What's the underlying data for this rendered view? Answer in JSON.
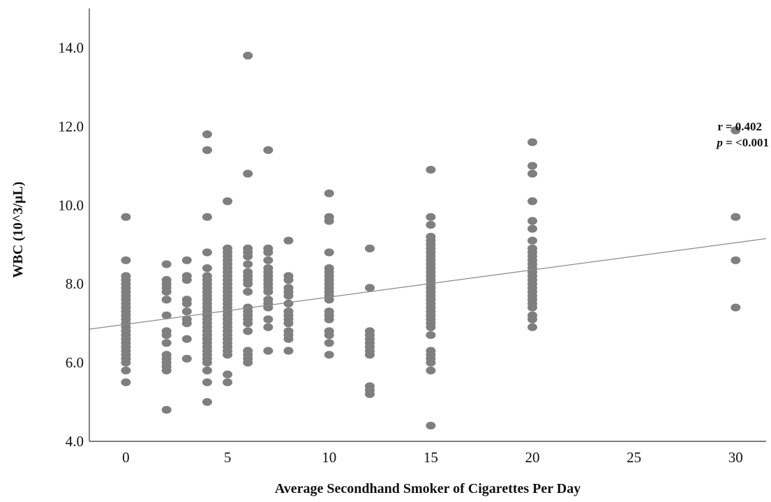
{
  "chart_data": {
    "type": "scatter",
    "xlabel": "Average Secondhand Smoker of Cigarettes Per Day",
    "ylabel": "WBC (10^3/µL)",
    "xlim": [
      -1.8,
      31.5
    ],
    "ylim": [
      4.0,
      15.0
    ],
    "x_ticks": [
      0,
      5,
      10,
      15,
      20,
      25,
      30
    ],
    "x_tick_labels": [
      "0",
      "5",
      "10",
      "15",
      "20",
      "25",
      "30"
    ],
    "y_ticks": [
      4.0,
      6.0,
      8.0,
      10.0,
      12.0,
      14.0
    ],
    "y_tick_labels": [
      "4.0",
      "6.0",
      "8.0",
      "10.0",
      "12.0",
      "14.0"
    ],
    "grid": false,
    "point_color": "#7f7f7f",
    "fit_line_color": "#8a8a8a",
    "fit_line": {
      "x": [
        -1.8,
        31.5
      ],
      "y": [
        6.85,
        9.15
      ]
    },
    "annotation": {
      "r_text": "r = 0.402",
      "p_symbol": "p",
      "p_text": " = <0.001"
    },
    "points": [
      [
        0,
        9.7
      ],
      [
        0,
        8.6
      ],
      [
        0,
        8.2
      ],
      [
        0,
        8.1
      ],
      [
        0,
        8.0
      ],
      [
        0,
        7.9
      ],
      [
        0,
        7.8
      ],
      [
        0,
        7.7
      ],
      [
        0,
        7.6
      ],
      [
        0,
        7.5
      ],
      [
        0,
        7.4
      ],
      [
        0,
        7.3
      ],
      [
        0,
        7.2
      ],
      [
        0,
        7.1
      ],
      [
        0,
        7.0
      ],
      [
        0,
        6.9
      ],
      [
        0,
        6.8
      ],
      [
        0,
        6.7
      ],
      [
        0,
        6.6
      ],
      [
        0,
        6.5
      ],
      [
        0,
        6.4
      ],
      [
        0,
        6.3
      ],
      [
        0,
        6.2
      ],
      [
        0,
        6.1
      ],
      [
        0,
        6.0
      ],
      [
        0,
        5.8
      ],
      [
        0,
        5.5
      ],
      [
        2,
        8.5
      ],
      [
        2,
        8.1
      ],
      [
        2,
        8.0
      ],
      [
        2,
        7.9
      ],
      [
        2,
        7.8
      ],
      [
        2,
        7.6
      ],
      [
        2,
        7.2
      ],
      [
        2,
        6.8
      ],
      [
        2,
        6.7
      ],
      [
        2,
        6.5
      ],
      [
        2,
        6.2
      ],
      [
        2,
        6.1
      ],
      [
        2,
        6.0
      ],
      [
        2,
        5.9
      ],
      [
        2,
        5.8
      ],
      [
        2,
        4.8
      ],
      [
        3,
        8.6
      ],
      [
        3,
        8.2
      ],
      [
        3,
        8.1
      ],
      [
        3,
        7.6
      ],
      [
        3,
        7.5
      ],
      [
        3,
        7.3
      ],
      [
        3,
        7.1
      ],
      [
        3,
        7.0
      ],
      [
        3,
        6.6
      ],
      [
        3,
        6.1
      ],
      [
        4,
        11.8
      ],
      [
        4,
        11.4
      ],
      [
        4,
        9.7
      ],
      [
        4,
        8.8
      ],
      [
        4,
        8.4
      ],
      [
        4,
        8.2
      ],
      [
        4,
        8.1
      ],
      [
        4,
        8.0
      ],
      [
        4,
        7.9
      ],
      [
        4,
        7.8
      ],
      [
        4,
        7.7
      ],
      [
        4,
        7.6
      ],
      [
        4,
        7.5
      ],
      [
        4,
        7.4
      ],
      [
        4,
        7.3
      ],
      [
        4,
        7.2
      ],
      [
        4,
        7.1
      ],
      [
        4,
        7.0
      ],
      [
        4,
        6.9
      ],
      [
        4,
        6.8
      ],
      [
        4,
        6.7
      ],
      [
        4,
        6.6
      ],
      [
        4,
        6.5
      ],
      [
        4,
        6.4
      ],
      [
        4,
        6.3
      ],
      [
        4,
        6.2
      ],
      [
        4,
        6.1
      ],
      [
        4,
        6.0
      ],
      [
        4,
        5.8
      ],
      [
        4,
        5.5
      ],
      [
        4,
        5.0
      ],
      [
        5,
        10.1
      ],
      [
        5,
        8.9
      ],
      [
        5,
        8.8
      ],
      [
        5,
        8.7
      ],
      [
        5,
        8.6
      ],
      [
        5,
        8.5
      ],
      [
        5,
        8.4
      ],
      [
        5,
        8.3
      ],
      [
        5,
        8.2
      ],
      [
        5,
        8.1
      ],
      [
        5,
        8.0
      ],
      [
        5,
        7.9
      ],
      [
        5,
        7.8
      ],
      [
        5,
        7.7
      ],
      [
        5,
        7.6
      ],
      [
        5,
        7.5
      ],
      [
        5,
        7.4
      ],
      [
        5,
        7.3
      ],
      [
        5,
        7.2
      ],
      [
        5,
        7.1
      ],
      [
        5,
        7.0
      ],
      [
        5,
        6.9
      ],
      [
        5,
        6.8
      ],
      [
        5,
        6.7
      ],
      [
        5,
        6.6
      ],
      [
        5,
        6.5
      ],
      [
        5,
        6.4
      ],
      [
        5,
        6.3
      ],
      [
        5,
        6.2
      ],
      [
        5,
        5.7
      ],
      [
        5,
        5.5
      ],
      [
        6,
        13.8
      ],
      [
        6,
        10.8
      ],
      [
        6,
        8.9
      ],
      [
        6,
        8.8
      ],
      [
        6,
        8.7
      ],
      [
        6,
        8.5
      ],
      [
        6,
        8.3
      ],
      [
        6,
        8.2
      ],
      [
        6,
        8.1
      ],
      [
        6,
        8.0
      ],
      [
        6,
        7.8
      ],
      [
        6,
        7.4
      ],
      [
        6,
        7.3
      ],
      [
        6,
        7.2
      ],
      [
        6,
        7.1
      ],
      [
        6,
        7.0
      ],
      [
        6,
        6.8
      ],
      [
        6,
        6.3
      ],
      [
        6,
        6.2
      ],
      [
        6,
        6.1
      ],
      [
        6,
        6.0
      ],
      [
        7,
        11.4
      ],
      [
        7,
        8.9
      ],
      [
        7,
        8.8
      ],
      [
        7,
        8.6
      ],
      [
        7,
        8.4
      ],
      [
        7,
        8.3
      ],
      [
        7,
        8.2
      ],
      [
        7,
        8.1
      ],
      [
        7,
        8.0
      ],
      [
        7,
        7.9
      ],
      [
        7,
        7.8
      ],
      [
        7,
        7.6
      ],
      [
        7,
        7.5
      ],
      [
        7,
        7.4
      ],
      [
        7,
        7.1
      ],
      [
        7,
        6.9
      ],
      [
        7,
        6.3
      ],
      [
        8,
        9.1
      ],
      [
        8,
        8.2
      ],
      [
        8,
        8.1
      ],
      [
        8,
        7.9
      ],
      [
        8,
        7.8
      ],
      [
        8,
        7.7
      ],
      [
        8,
        7.5
      ],
      [
        8,
        7.3
      ],
      [
        8,
        7.2
      ],
      [
        8,
        7.1
      ],
      [
        8,
        7.0
      ],
      [
        8,
        6.8
      ],
      [
        8,
        6.7
      ],
      [
        8,
        6.6
      ],
      [
        8,
        6.3
      ],
      [
        10,
        10.3
      ],
      [
        10,
        9.7
      ],
      [
        10,
        9.6
      ],
      [
        10,
        8.8
      ],
      [
        10,
        8.4
      ],
      [
        10,
        8.3
      ],
      [
        10,
        8.2
      ],
      [
        10,
        8.1
      ],
      [
        10,
        8.0
      ],
      [
        10,
        7.9
      ],
      [
        10,
        7.8
      ],
      [
        10,
        7.7
      ],
      [
        10,
        7.6
      ],
      [
        10,
        7.3
      ],
      [
        10,
        7.2
      ],
      [
        10,
        7.1
      ],
      [
        10,
        6.8
      ],
      [
        10,
        6.7
      ],
      [
        10,
        6.5
      ],
      [
        10,
        6.2
      ],
      [
        12,
        8.9
      ],
      [
        12,
        7.9
      ],
      [
        12,
        6.8
      ],
      [
        12,
        6.7
      ],
      [
        12,
        6.6
      ],
      [
        12,
        6.5
      ],
      [
        12,
        6.4
      ],
      [
        12,
        6.3
      ],
      [
        12,
        6.2
      ],
      [
        12,
        5.4
      ],
      [
        12,
        5.3
      ],
      [
        12,
        5.2
      ],
      [
        15,
        10.9
      ],
      [
        15,
        9.7
      ],
      [
        15,
        9.5
      ],
      [
        15,
        9.2
      ],
      [
        15,
        9.1
      ],
      [
        15,
        9.0
      ],
      [
        15,
        8.9
      ],
      [
        15,
        8.8
      ],
      [
        15,
        8.7
      ],
      [
        15,
        8.6
      ],
      [
        15,
        8.5
      ],
      [
        15,
        8.4
      ],
      [
        15,
        8.3
      ],
      [
        15,
        8.2
      ],
      [
        15,
        8.1
      ],
      [
        15,
        8.0
      ],
      [
        15,
        7.9
      ],
      [
        15,
        7.8
      ],
      [
        15,
        7.7
      ],
      [
        15,
        7.6
      ],
      [
        15,
        7.5
      ],
      [
        15,
        7.4
      ],
      [
        15,
        7.3
      ],
      [
        15,
        7.2
      ],
      [
        15,
        7.1
      ],
      [
        15,
        7.0
      ],
      [
        15,
        6.9
      ],
      [
        15,
        6.7
      ],
      [
        15,
        6.3
      ],
      [
        15,
        6.2
      ],
      [
        15,
        6.1
      ],
      [
        15,
        6.0
      ],
      [
        15,
        5.8
      ],
      [
        15,
        4.4
      ],
      [
        20,
        11.6
      ],
      [
        20,
        11.0
      ],
      [
        20,
        10.8
      ],
      [
        20,
        10.1
      ],
      [
        20,
        9.6
      ],
      [
        20,
        9.4
      ],
      [
        20,
        9.1
      ],
      [
        20,
        8.9
      ],
      [
        20,
        8.8
      ],
      [
        20,
        8.7
      ],
      [
        20,
        8.6
      ],
      [
        20,
        8.5
      ],
      [
        20,
        8.4
      ],
      [
        20,
        8.3
      ],
      [
        20,
        8.2
      ],
      [
        20,
        8.1
      ],
      [
        20,
        8.0
      ],
      [
        20,
        7.9
      ],
      [
        20,
        7.8
      ],
      [
        20,
        7.7
      ],
      [
        20,
        7.6
      ],
      [
        20,
        7.5
      ],
      [
        20,
        7.4
      ],
      [
        20,
        7.2
      ],
      [
        20,
        7.1
      ],
      [
        20,
        6.9
      ],
      [
        30,
        11.9
      ],
      [
        30,
        9.7
      ],
      [
        30,
        8.6
      ],
      [
        30,
        7.4
      ]
    ]
  }
}
